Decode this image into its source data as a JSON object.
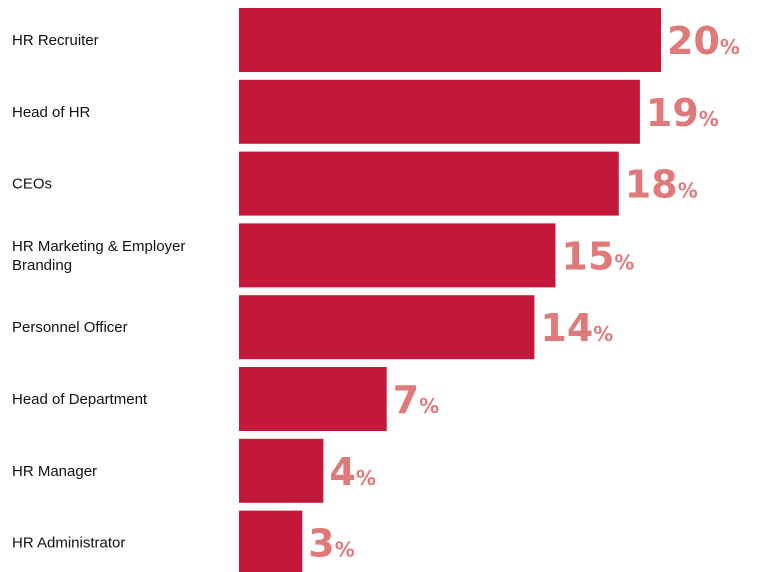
{
  "chart_data": {
    "type": "bar",
    "orientation": "horizontal",
    "categories": [
      "HR Recruiter",
      "Head of HR",
      "CEOs",
      "HR Marketing & Employer Branding",
      "Personnel Officer",
      "Head of Department",
      "HR Manager",
      "HR Administrator"
    ],
    "values": [
      20,
      19,
      18,
      15,
      14,
      7,
      4,
      3
    ],
    "value_suffix": "%",
    "title": "",
    "xlabel": "",
    "ylabel": "",
    "xlim": [
      0,
      20
    ],
    "grid": false,
    "legend": "none",
    "colors": {
      "bar": "#c3183a",
      "value_label": "#e07a7a",
      "category_label": "#111111"
    }
  }
}
